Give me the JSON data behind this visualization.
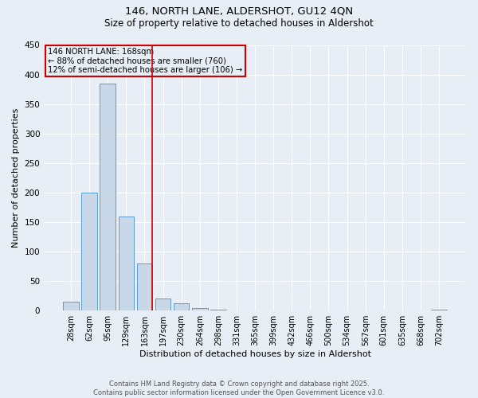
{
  "title1": "146, NORTH LANE, ALDERSHOT, GU12 4QN",
  "title2": "Size of property relative to detached houses in Aldershot",
  "xlabel": "Distribution of detached houses by size in Aldershot",
  "ylabel": "Number of detached properties",
  "categories": [
    "28sqm",
    "62sqm",
    "95sqm",
    "129sqm",
    "163sqm",
    "197sqm",
    "230sqm",
    "264sqm",
    "298sqm",
    "331sqm",
    "365sqm",
    "399sqm",
    "432sqm",
    "466sqm",
    "500sqm",
    "534sqm",
    "567sqm",
    "601sqm",
    "635sqm",
    "668sqm",
    "702sqm"
  ],
  "values": [
    15,
    200,
    385,
    160,
    80,
    20,
    12,
    5,
    2,
    0,
    0,
    0,
    0,
    0,
    0,
    0,
    0,
    0,
    0,
    0,
    1
  ],
  "bar_color": "#c8d8e8",
  "bar_edgecolor": "#5b9bd5",
  "background_color": "#e8eef5",
  "grid_color": "#ffffff",
  "redline_index": 4,
  "annotation_text": "146 NORTH LANE: 168sqm\n← 88% of detached houses are smaller (760)\n12% of semi-detached houses are larger (106) →",
  "annotation_box_color": "#cc0000",
  "footer": "Contains HM Land Registry data © Crown copyright and database right 2025.\nContains public sector information licensed under the Open Government Licence v3.0.",
  "ylim": [
    0,
    450
  ],
  "yticks": [
    0,
    50,
    100,
    150,
    200,
    250,
    300,
    350,
    400,
    450
  ]
}
